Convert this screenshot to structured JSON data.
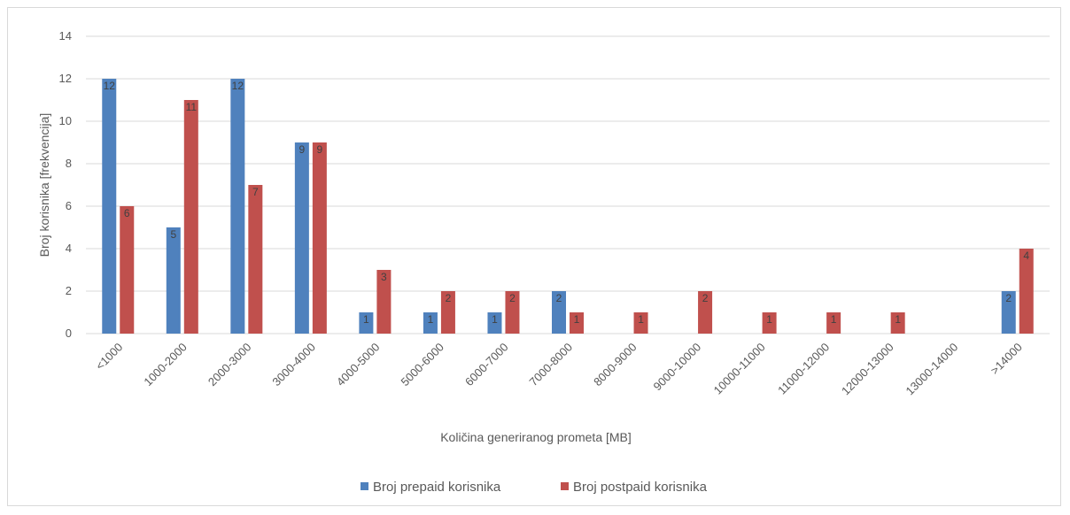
{
  "chart_data": {
    "type": "bar",
    "title": "",
    "xlabel": "Količina generiranog prometa [MB]",
    "ylabel": "Broj korisnika [frekvencija]",
    "ylim": [
      0,
      14
    ],
    "yticks": [
      0,
      2,
      4,
      6,
      8,
      10,
      12,
      14
    ],
    "grid": true,
    "legend_position": "bottom",
    "data_labels": true,
    "categories": [
      "<1000",
      "1000-2000",
      "2000-3000",
      "3000-4000",
      "4000-5000",
      "5000-6000",
      "6000-7000",
      "7000-8000",
      "8000-9000",
      "9000-10000",
      "10000-11000",
      "11000-12000",
      "12000-13000",
      "13000-14000",
      ">14000"
    ],
    "series": [
      {
        "name": "Broj prepaid korisnika",
        "color": "#4f81bd",
        "values": [
          12,
          5,
          12,
          9,
          1,
          1,
          1,
          2,
          0,
          0,
          0,
          0,
          0,
          0,
          2
        ]
      },
      {
        "name": "Broj postpaid korisnika",
        "color": "#c0504d",
        "values": [
          6,
          11,
          7,
          9,
          3,
          2,
          2,
          1,
          1,
          2,
          1,
          1,
          1,
          0,
          4
        ]
      }
    ]
  }
}
